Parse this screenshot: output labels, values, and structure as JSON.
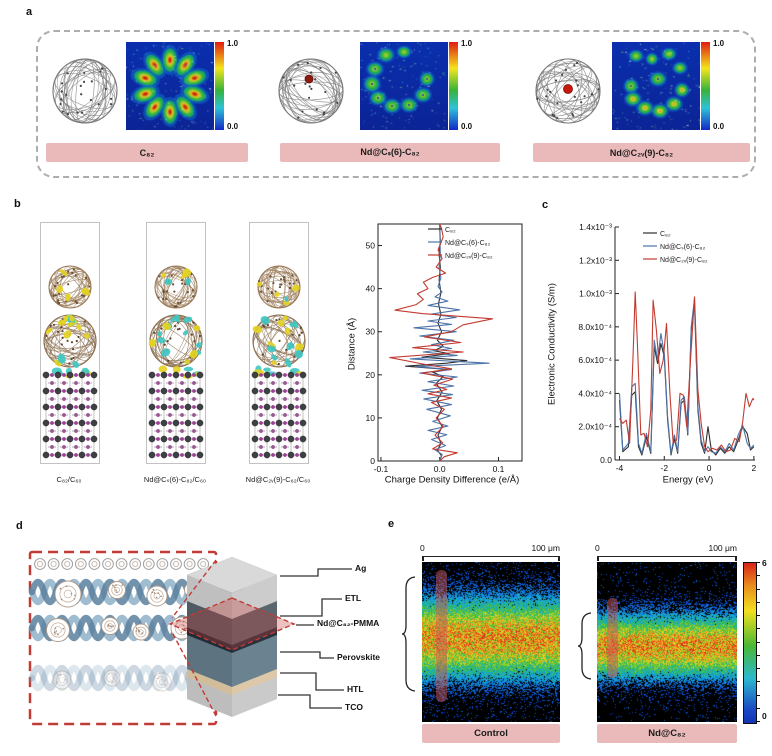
{
  "panel_a": {
    "label": "a",
    "colorbar": {
      "max": "1.0",
      "min": "0.0"
    },
    "groups": [
      {
        "name": "C₈₂"
      },
      {
        "name": "Nd@Cₛ(6)-C₈₂"
      },
      {
        "name": "Nd@C₂ᵥ(9)-C₈₂"
      }
    ]
  },
  "panel_b": {
    "label": "b",
    "structures": [
      {
        "name": "C₈₂/C₆₀"
      },
      {
        "name": "Nd@Cₛ(6)-C₈₂/C₆₀"
      },
      {
        "name": "Nd@C₂ᵥ(9)-C₈₂/C₆₀"
      }
    ]
  },
  "panel_c": {
    "label": "c"
  },
  "panel_d": {
    "label": "d",
    "layers": [
      {
        "name": "Ag"
      },
      {
        "name": "ETL"
      },
      {
        "name": "Nd@C₈₂-PMMA"
      },
      {
        "name": "Perovskite"
      },
      {
        "name": "HTL"
      },
      {
        "name": "TCO"
      }
    ]
  },
  "panel_e": {
    "label": "e",
    "colorbar": {
      "max": "6",
      "min": "0"
    },
    "maps": [
      {
        "title": "Control",
        "ruler_start": "0",
        "ruler_end": "100 μm"
      },
      {
        "title": "Nd@C₈₂",
        "ruler_start": "0",
        "ruler_end": "100 μm"
      }
    ]
  },
  "chart_data": [
    {
      "type": "line",
      "title": "",
      "xlabel": "Charge Density Difference (e/Å)",
      "ylabel": "Distance (Å)",
      "xlim": [
        -0.105,
        0.14
      ],
      "ylim": [
        0,
        55
      ],
      "grid": false,
      "legend_position": "top-right",
      "xticks": [
        [
          -0.1,
          "-0.1"
        ],
        [
          0,
          "0.0"
        ],
        [
          0.1,
          "0.1"
        ]
      ],
      "yticks": [
        [
          0,
          "0"
        ],
        [
          10,
          "10"
        ],
        [
          20,
          "20"
        ],
        [
          30,
          "30"
        ],
        [
          40,
          "40"
        ],
        [
          50,
          "50"
        ]
      ],
      "series": [
        {
          "name": "C₈₂",
          "color": "#2f2f2f",
          "points": [
            [
              0,
              0
            ],
            [
              0.003,
              1.2
            ],
            [
              -0.004,
              2.5
            ],
            [
              0.002,
              4
            ],
            [
              -0.003,
              6
            ],
            [
              0.004,
              8
            ],
            [
              -0.004,
              10
            ],
            [
              0.003,
              12
            ],
            [
              -0.005,
              14
            ],
            [
              0.004,
              16
            ],
            [
              -0.006,
              18
            ],
            [
              0.006,
              19.6
            ],
            [
              -0.012,
              20.6
            ],
            [
              0.016,
              21.2
            ],
            [
              -0.058,
              22
            ],
            [
              0.012,
              22.7
            ],
            [
              0.046,
              23.3
            ],
            [
              -0.03,
              24.1
            ],
            [
              0.016,
              24.9
            ],
            [
              -0.01,
              25.6
            ],
            [
              0.006,
              26.6
            ],
            [
              -0.004,
              28
            ],
            [
              0.003,
              30
            ],
            [
              -0.003,
              32
            ],
            [
              0.002,
              34
            ],
            [
              -0.002,
              36.5
            ],
            [
              0.002,
              39
            ],
            [
              -0.001,
              42
            ],
            [
              0.001,
              45
            ],
            [
              -0.001,
              48
            ],
            [
              0.001,
              51
            ],
            [
              0,
              55
            ]
          ]
        },
        {
          "name": "Nd@Cₛ(6)-C₈₂",
          "color": "#4d74a8",
          "points": [
            [
              0,
              0
            ],
            [
              0.004,
              1.5
            ],
            [
              -0.008,
              2.6
            ],
            [
              0.01,
              3.6
            ],
            [
              -0.014,
              5
            ],
            [
              0.012,
              6.1
            ],
            [
              -0.02,
              7.1
            ],
            [
              0.014,
              8.1
            ],
            [
              -0.012,
              9.2
            ],
            [
              0.018,
              10.5
            ],
            [
              -0.022,
              12
            ],
            [
              0.02,
              13.1
            ],
            [
              -0.027,
              14.4
            ],
            [
              0.022,
              15.4
            ],
            [
              -0.03,
              16.4
            ],
            [
              0.024,
              17.4
            ],
            [
              -0.02,
              18.4
            ],
            [
              0.03,
              19.5
            ],
            [
              -0.034,
              20.4
            ],
            [
              0.02,
              21.2
            ],
            [
              -0.04,
              21.9
            ],
            [
              0.084,
              22.7
            ],
            [
              -0.05,
              23.7
            ],
            [
              0.03,
              24.5
            ],
            [
              -0.028,
              25.3
            ],
            [
              0.02,
              26.1
            ],
            [
              -0.014,
              27
            ],
            [
              0.024,
              28
            ],
            [
              -0.034,
              29
            ],
            [
              0.028,
              30
            ],
            [
              -0.044,
              30.9
            ],
            [
              0.02,
              31.7
            ],
            [
              -0.02,
              32.5
            ],
            [
              0.028,
              33.3
            ],
            [
              -0.014,
              34.1
            ],
            [
              0.034,
              35.1
            ],
            [
              -0.02,
              36.1
            ],
            [
              0.014,
              37.1
            ],
            [
              -0.008,
              38.1
            ],
            [
              0.004,
              39.2
            ],
            [
              -0.003,
              40.5
            ],
            [
              0.002,
              42.5
            ],
            [
              -0.001,
              45
            ],
            [
              0.001,
              48
            ],
            [
              0,
              55
            ]
          ]
        },
        {
          "name": "Nd@C₂ᵥ(9)-C₈₂",
          "color": "#c23b30",
          "points": [
            [
              0,
              0
            ],
            [
              0.008,
              1
            ],
            [
              0.03,
              1.9
            ],
            [
              -0.012,
              2.8
            ],
            [
              0.005,
              4.2
            ],
            [
              -0.008,
              6
            ],
            [
              0.006,
              8
            ],
            [
              -0.006,
              10
            ],
            [
              0.008,
              12
            ],
            [
              -0.014,
              13.6
            ],
            [
              0.02,
              14.6
            ],
            [
              -0.02,
              15.6
            ],
            [
              0.012,
              16.6
            ],
            [
              -0.01,
              17.6
            ],
            [
              0.022,
              19
            ],
            [
              -0.03,
              20.4
            ],
            [
              0.02,
              21.4
            ],
            [
              -0.024,
              22.4
            ],
            [
              -0.085,
              24
            ],
            [
              0.04,
              25.3
            ],
            [
              -0.046,
              26.3
            ],
            [
              0.036,
              27.5
            ],
            [
              -0.026,
              28.8
            ],
            [
              0.02,
              30
            ],
            [
              0.04,
              31.6
            ],
            [
              0.09,
              33
            ],
            [
              -0.03,
              34.2
            ],
            [
              -0.076,
              35
            ],
            [
              -0.04,
              36.3
            ],
            [
              -0.028,
              37.5
            ],
            [
              -0.038,
              38.8
            ],
            [
              -0.02,
              40
            ],
            [
              -0.028,
              41.5
            ],
            [
              -0.012,
              42.6
            ],
            [
              0.01,
              43.6
            ],
            [
              -0.006,
              45
            ],
            [
              0.004,
              47
            ],
            [
              -0.003,
              49
            ],
            [
              0.006,
              52
            ],
            [
              0.003,
              54
            ],
            [
              0,
              55
            ]
          ]
        }
      ]
    },
    {
      "type": "line",
      "title": "",
      "xlabel": "Energy (eV)",
      "ylabel": "Electronic Conductivity (S/m)",
      "y_unit": "1e-4 S/m",
      "xlim": [
        -4.2,
        2.05
      ],
      "ylim": [
        0,
        14
      ],
      "grid": false,
      "legend_position": "top-right",
      "xticks": [
        [
          -4,
          "-4"
        ],
        [
          -2,
          "-2"
        ],
        [
          0,
          "0"
        ],
        [
          2,
          "2"
        ]
      ],
      "yticks": [
        [
          0,
          "0.0"
        ],
        [
          2,
          "2.0x10⁻⁴"
        ],
        [
          4,
          "4.0x10⁻⁴"
        ],
        [
          6,
          "6.0x10⁻⁴"
        ],
        [
          8,
          "8.0x10⁻⁴"
        ],
        [
          10,
          "1.0x10⁻³"
        ],
        [
          12,
          "1.2x10⁻³"
        ],
        [
          14,
          "1.4x10⁻³"
        ]
      ],
      "series": [
        {
          "name": "C₈₂",
          "color": "#2f2f2f",
          "points": [
            [
              -4,
              3.6
            ],
            [
              -3.85,
              0.5
            ],
            [
              -3.6,
              0.8
            ],
            [
              -3.45,
              3.9
            ],
            [
              -3.3,
              4.1
            ],
            [
              -3.15,
              0.8
            ],
            [
              -3,
              0.3
            ],
            [
              -2.8,
              1.4
            ],
            [
              -2.6,
              0.4
            ],
            [
              -2.45,
              6.8
            ],
            [
              -2.3,
              5.8
            ],
            [
              -2.15,
              7
            ],
            [
              -2,
              6.2
            ],
            [
              -1.85,
              2.4
            ],
            [
              -1.7,
              0.3
            ],
            [
              -1.55,
              1.3
            ],
            [
              -1.4,
              0.4
            ],
            [
              -1.25,
              3.4
            ],
            [
              -1.1,
              3.6
            ],
            [
              -0.95,
              1.5
            ],
            [
              -0.8,
              7.8
            ],
            [
              -0.65,
              9.4
            ],
            [
              -0.5,
              3
            ],
            [
              -0.35,
              1
            ],
            [
              -0.2,
              0.4
            ],
            [
              -0.05,
              2
            ],
            [
              0.1,
              0.6
            ],
            [
              0.3,
              0.3
            ],
            [
              0.5,
              0.7
            ],
            [
              0.7,
              0.4
            ],
            [
              0.9,
              0.8
            ],
            [
              1.1,
              0.5
            ],
            [
              1.3,
              1.2
            ],
            [
              1.5,
              2
            ],
            [
              1.7,
              1.6
            ],
            [
              1.85,
              0.6
            ],
            [
              2,
              0.8
            ]
          ]
        },
        {
          "name": "Nd@Cₛ(6)-C₈₂",
          "color": "#4d74a8",
          "points": [
            [
              -4,
              4
            ],
            [
              -3.85,
              0.6
            ],
            [
              -3.6,
              1
            ],
            [
              -3.45,
              4.4
            ],
            [
              -3.3,
              4.6
            ],
            [
              -3.15,
              1
            ],
            [
              -3,
              0.4
            ],
            [
              -2.8,
              1.6
            ],
            [
              -2.6,
              0.5
            ],
            [
              -2.45,
              7.2
            ],
            [
              -2.3,
              6
            ],
            [
              -2.15,
              7.6
            ],
            [
              -2,
              6.4
            ],
            [
              -1.85,
              2.6
            ],
            [
              -1.7,
              0.4
            ],
            [
              -1.55,
              1.5
            ],
            [
              -1.4,
              0.5
            ],
            [
              -1.25,
              3.6
            ],
            [
              -1.1,
              3.8
            ],
            [
              -0.95,
              1.6
            ],
            [
              -0.8,
              8
            ],
            [
              -0.65,
              9.7
            ],
            [
              -0.5,
              3.2
            ],
            [
              -0.35,
              1.2
            ],
            [
              -0.2,
              0.5
            ],
            [
              -0.05,
              0.8
            ],
            [
              0.1,
              0.5
            ],
            [
              0.3,
              0.4
            ],
            [
              0.5,
              0.8
            ],
            [
              0.7,
              0.5
            ],
            [
              0.9,
              1
            ],
            [
              1.1,
              0.6
            ],
            [
              1.3,
              1.5
            ],
            [
              1.5,
              2.1
            ],
            [
              1.7,
              1
            ],
            [
              1.85,
              0.7
            ],
            [
              2,
              0.9
            ]
          ]
        },
        {
          "name": "Nd@C₂ᵥ(9)-C₈₂",
          "color": "#c23b30",
          "points": [
            [
              -4,
              2.5
            ],
            [
              -3.85,
              2.2
            ],
            [
              -3.7,
              2.4
            ],
            [
              -3.55,
              1
            ],
            [
              -3.4,
              6
            ],
            [
              -3.3,
              10.1
            ],
            [
              -3.2,
              7
            ],
            [
              -3.05,
              1.5
            ],
            [
              -2.9,
              1.6
            ],
            [
              -2.75,
              0.8
            ],
            [
              -2.6,
              3
            ],
            [
              -2.5,
              9.6
            ],
            [
              -2.35,
              7.8
            ],
            [
              -2.2,
              5.2
            ],
            [
              -2.05,
              6
            ],
            [
              -1.9,
              8.2
            ],
            [
              -1.75,
              4
            ],
            [
              -1.6,
              1
            ],
            [
              -1.45,
              1.2
            ],
            [
              -1.3,
              4
            ],
            [
              -1.15,
              3.9
            ],
            [
              -1,
              2
            ],
            [
              -0.85,
              5.5
            ],
            [
              -0.65,
              9.8
            ],
            [
              -0.5,
              4.2
            ],
            [
              -0.35,
              2.2
            ],
            [
              -0.2,
              0.8
            ],
            [
              -0.05,
              0.5
            ],
            [
              0.15,
              0.7
            ],
            [
              0.35,
              0.6
            ],
            [
              0.55,
              0.9
            ],
            [
              0.75,
              0.5
            ],
            [
              0.95,
              0.6
            ],
            [
              1.15,
              1.3
            ],
            [
              1.35,
              1.1
            ],
            [
              1.5,
              2.3
            ],
            [
              1.65,
              4
            ],
            [
              1.8,
              3.2
            ],
            [
              1.95,
              3.7
            ],
            [
              2,
              3.6
            ]
          ]
        }
      ]
    }
  ]
}
